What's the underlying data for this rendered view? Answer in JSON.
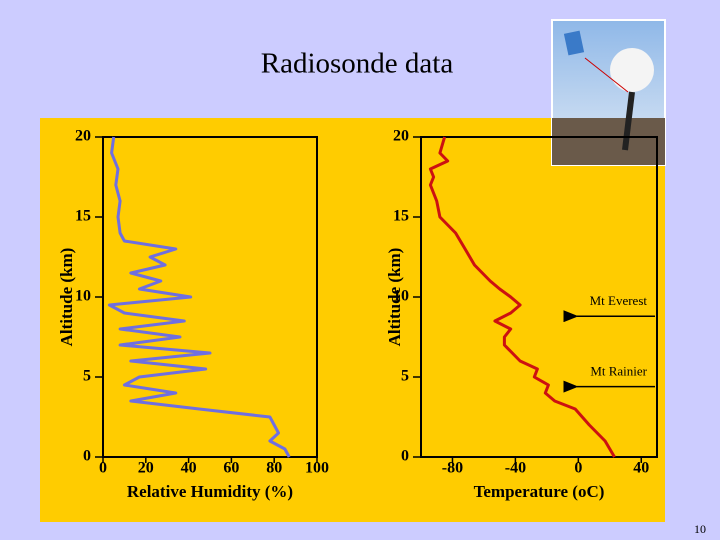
{
  "slide": {
    "title": "Radiosonde data",
    "page_number": 10
  },
  "chart_data": [
    {
      "type": "line",
      "x_label": "Relative Humidity (%)",
      "y_label": "Altitude (km)",
      "xlim": [
        0,
        100
      ],
      "xticks": [
        0,
        20,
        40,
        60,
        80,
        100
      ],
      "ylim": [
        0,
        20
      ],
      "yticks": [
        0,
        5,
        10,
        15,
        20
      ],
      "series": [
        {
          "color": "#6f6fe0",
          "x": [
            87,
            85,
            78,
            82,
            80,
            78,
            45,
            13,
            34,
            10,
            17,
            48,
            13,
            50,
            8,
            36,
            8,
            38,
            10,
            3,
            41,
            17,
            27,
            13,
            29,
            22,
            34,
            10,
            8,
            7,
            8,
            6,
            7,
            4,
            5
          ],
          "values": [
            0,
            0.5,
            1,
            1.5,
            2,
            2.5,
            3,
            3.5,
            4,
            4.5,
            5,
            5.5,
            6,
            6.5,
            7,
            7.5,
            8,
            8.5,
            9,
            9.5,
            10,
            10.5,
            11,
            11.5,
            12,
            12.5,
            13,
            13.5,
            14,
            15,
            16,
            17,
            18,
            19,
            20
          ]
        }
      ]
    },
    {
      "type": "line",
      "x_label": "Temperature (oC)",
      "y_label": "Altitude (km)",
      "xlim": [
        -100,
        50
      ],
      "xticks": [
        -80,
        -40,
        0,
        40
      ],
      "ylim": [
        0,
        20
      ],
      "yticks": [
        0,
        5,
        10,
        15,
        20
      ],
      "series": [
        {
          "color": "#cc1111",
          "x": [
            23,
            17,
            7,
            -2,
            -15,
            -21,
            -19,
            -28,
            -26,
            -37,
            -47,
            -47,
            -43,
            -53,
            -43,
            -37,
            -43,
            -50,
            -56,
            -66,
            -72,
            -78,
            -88,
            -90,
            -94,
            -92,
            -94,
            -83,
            -88,
            -85
          ],
          "values": [
            0,
            1,
            2,
            3,
            3.5,
            4,
            4.5,
            5,
            5.5,
            6,
            7,
            7.5,
            8,
            8.5,
            9,
            9.5,
            10,
            10.5,
            11,
            12,
            13,
            14,
            15,
            16,
            17,
            17.5,
            18,
            18.5,
            19,
            20
          ]
        }
      ],
      "annotations": [
        {
          "text": "Mt Everest",
          "altitude": 8.8
        },
        {
          "text": "Mt Rainier",
          "altitude": 4.4
        }
      ]
    }
  ]
}
